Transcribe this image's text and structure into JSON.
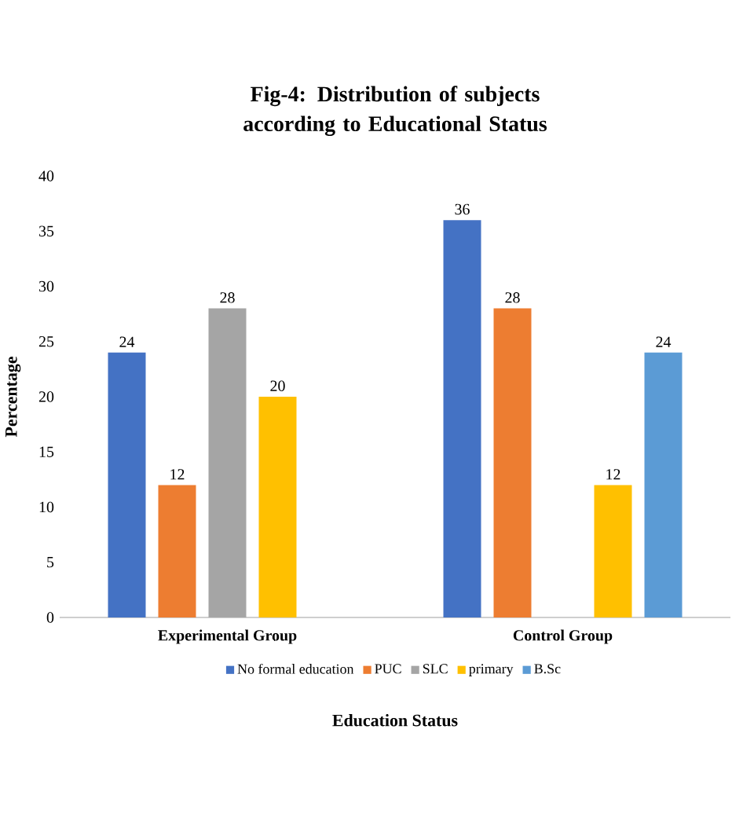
{
  "chart_data": {
    "type": "bar",
    "title": "Fig-4: Distribution of subjects according to Educational Status",
    "categories": [
      "Experimental Group",
      "Control Group"
    ],
    "xlabel": "Education Status",
    "ylabel": "Percentage",
    "ylim": [
      0,
      40
    ],
    "yticks": [
      0,
      5,
      10,
      15,
      20,
      25,
      30,
      35,
      40
    ],
    "series": [
      {
        "name": "No formal education",
        "color": "#4472c4",
        "values": [
          24,
          36
        ]
      },
      {
        "name": "PUC",
        "color": "#ed7d31",
        "values": [
          12,
          28
        ]
      },
      {
        "name": "SLC",
        "color": "#a5a5a5",
        "values": [
          28,
          null
        ]
      },
      {
        "name": "primary",
        "color": "#ffc000",
        "values": [
          20,
          12
        ]
      },
      {
        "name": "B.Sc",
        "color": "#5b9bd5",
        "values": [
          null,
          24
        ]
      }
    ],
    "data_labels": true,
    "grid": false,
    "legend": "bottom"
  }
}
